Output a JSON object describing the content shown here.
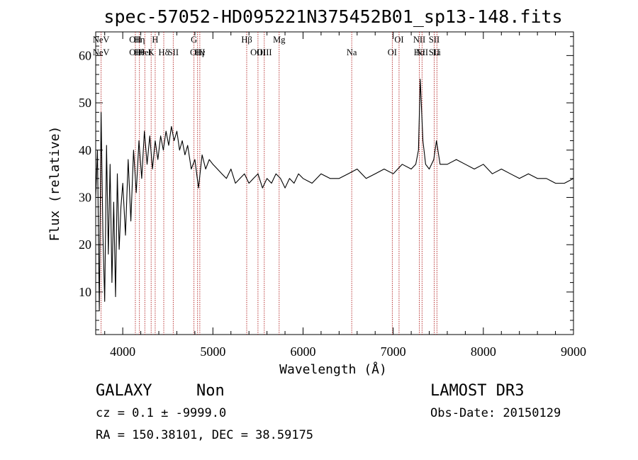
{
  "chart_data": {
    "type": "line",
    "title": "spec-57052-HD095221N375452B01_sp13-148.fits",
    "xlabel": "Wavelength (Å)",
    "ylabel": "Flux (relative)",
    "xlim": [
      3700,
      9000
    ],
    "ylim": [
      1,
      65
    ],
    "xticks": [
      4000,
      5000,
      6000,
      7000,
      8000,
      9000
    ],
    "yticks": [
      10,
      20,
      30,
      40,
      50,
      60
    ],
    "grid": false,
    "line_color": "#000000",
    "marker_color": "#b22222",
    "series": [
      {
        "x": [
          3700,
          3720,
          3740,
          3760,
          3780,
          3800,
          3820,
          3840,
          3860,
          3880,
          3900,
          3920,
          3940,
          3960,
          3980,
          4000,
          4030,
          4060,
          4090,
          4120,
          4150,
          4180,
          4210,
          4240,
          4270,
          4300,
          4330,
          4360,
          4390,
          4420,
          4450,
          4480,
          4510,
          4540,
          4570,
          4600,
          4630,
          4660,
          4690,
          4720,
          4760,
          4800,
          4840,
          4880,
          4920,
          4960,
          5000,
          5050,
          5100,
          5150,
          5200,
          5250,
          5300,
          5350,
          5400,
          5450,
          5500,
          5550,
          5600,
          5650,
          5700,
          5750,
          5800,
          5850,
          5900,
          5950,
          6000,
          6100,
          6200,
          6300,
          6400,
          6500,
          6600,
          6700,
          6800,
          6900,
          7000,
          7100,
          7200,
          7250,
          7280,
          7300,
          7330,
          7360,
          7400,
          7450,
          7480,
          7520,
          7600,
          7700,
          7800,
          7900,
          8000,
          8100,
          8200,
          8300,
          8400,
          8500,
          8600,
          8700,
          8800,
          8900,
          9000
        ],
        "values": [
          30,
          40,
          6,
          48,
          22,
          8,
          41,
          18,
          37,
          12,
          29,
          9,
          35,
          19,
          28,
          33,
          22,
          38,
          25,
          40,
          31,
          42,
          34,
          44,
          37,
          43,
          36,
          42,
          38,
          43,
          40,
          44,
          41,
          45,
          42,
          44,
          40,
          42,
          39,
          41,
          36,
          38,
          32,
          39,
          36,
          38,
          37,
          36,
          35,
          34,
          36,
          33,
          34,
          35,
          33,
          34,
          35,
          32,
          34,
          33,
          35,
          34,
          32,
          34,
          33,
          35,
          34,
          33,
          35,
          34,
          34,
          35,
          36,
          34,
          35,
          36,
          35,
          37,
          36,
          37,
          40,
          55,
          42,
          37,
          36,
          38,
          42,
          37,
          37,
          38,
          37,
          36,
          37,
          35,
          36,
          35,
          34,
          35,
          34,
          34,
          33,
          33,
          34
        ]
      }
    ],
    "line_markers": [
      {
        "x": 3760,
        "top": "NeV",
        "bottom": "NeV"
      },
      {
        "x": 4140,
        "top": "OII",
        "bottom": "OII"
      },
      {
        "x": 4185,
        "top": "Hη",
        "bottom": "Hθ"
      },
      {
        "x": 4245,
        "top": "",
        "bottom": "HeI"
      },
      {
        "x": 4315,
        "top": "",
        "bottom": "K"
      },
      {
        "x": 4360,
        "top": "H",
        "bottom": ""
      },
      {
        "x": 4455,
        "top": "",
        "bottom": "Hδ"
      },
      {
        "x": 4560,
        "top": "",
        "bottom": "SII"
      },
      {
        "x": 4790,
        "top": "G",
        "bottom": ""
      },
      {
        "x": 4830,
        "top": "",
        "bottom": "OIII"
      },
      {
        "x": 4855,
        "top": "",
        "bottom": "Hγ"
      },
      {
        "x": 5375,
        "top": "Hβ",
        "bottom": ""
      },
      {
        "x": 5500,
        "top": "",
        "bottom": "OIII"
      },
      {
        "x": 5570,
        "top": "",
        "bottom": "OIII"
      },
      {
        "x": 5735,
        "top": "Mg",
        "bottom": ""
      },
      {
        "x": 6540,
        "top": "",
        "bottom": "Na"
      },
      {
        "x": 6990,
        "top": "",
        "bottom": "OI"
      },
      {
        "x": 7065,
        "top": "OI",
        "bottom": ""
      },
      {
        "x": 7290,
        "top": "NII",
        "bottom": "Hα"
      },
      {
        "x": 7320,
        "top": "",
        "bottom": "NII"
      },
      {
        "x": 7455,
        "top": "SII",
        "bottom": "SII"
      },
      {
        "x": 7485,
        "top": "",
        "bottom": "Li"
      }
    ]
  },
  "info": {
    "obj_class": "GALAXY",
    "subclass": "Non",
    "cz": "cz = 0.1 ± -9999.0",
    "radec": "RA = 150.38101, DEC =  38.59175",
    "survey": "LAMOST DR3",
    "obs_date": "Obs-Date: 20150129"
  }
}
